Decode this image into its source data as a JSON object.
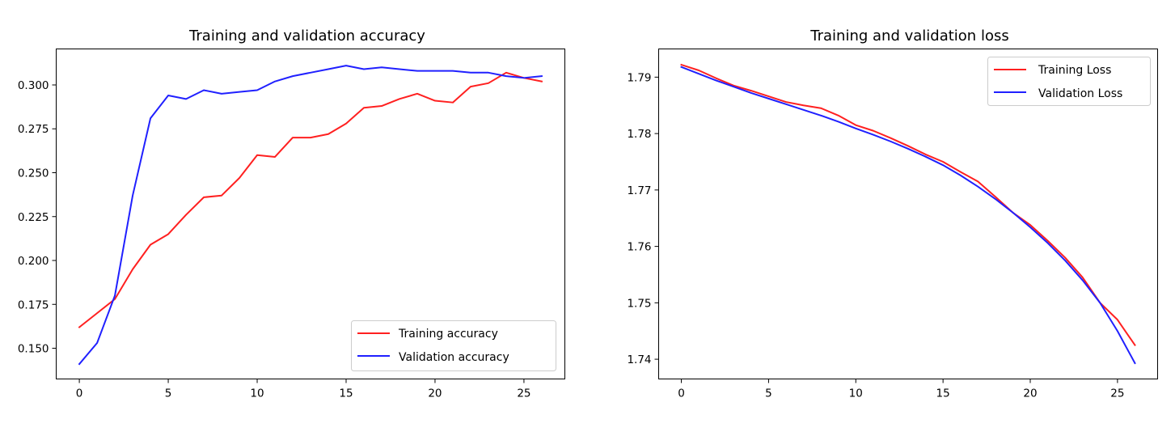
{
  "chart_data": [
    {
      "type": "line",
      "title": "Training and validation accuracy",
      "xlabel": "",
      "ylabel": "",
      "xlim": [
        -1.3,
        27.3
      ],
      "ylim": [
        0.1325,
        0.3205
      ],
      "xticks": [
        0,
        5,
        10,
        15,
        20,
        25
      ],
      "yticks": [
        0.15,
        0.175,
        0.2,
        0.225,
        0.25,
        0.275,
        0.3
      ],
      "ytick_labels": [
        "0.150",
        "0.175",
        "0.200",
        "0.225",
        "0.250",
        "0.275",
        "0.300"
      ],
      "legend_position": "lower-right",
      "grid": false,
      "x": [
        0,
        1,
        2,
        3,
        4,
        5,
        6,
        7,
        8,
        9,
        10,
        11,
        12,
        13,
        14,
        15,
        16,
        17,
        18,
        19,
        20,
        21,
        22,
        23,
        24,
        25,
        26
      ],
      "series": [
        {
          "name": "Training accuracy",
          "color": "#ff2020",
          "values": [
            0.162,
            0.17,
            0.178,
            0.195,
            0.209,
            0.215,
            0.226,
            0.236,
            0.237,
            0.247,
            0.26,
            0.259,
            0.27,
            0.27,
            0.272,
            0.278,
            0.287,
            0.288,
            0.292,
            0.295,
            0.291,
            0.29,
            0.299,
            0.301,
            0.307,
            0.304,
            0.302
          ]
        },
        {
          "name": "Validation accuracy",
          "color": "#2020ff",
          "values": [
            0.141,
            0.153,
            0.18,
            0.237,
            0.281,
            0.294,
            0.292,
            0.297,
            0.295,
            0.296,
            0.297,
            0.302,
            0.305,
            0.307,
            0.309,
            0.311,
            0.309,
            0.31,
            0.309,
            0.308,
            0.308,
            0.308,
            0.307,
            0.307,
            0.305,
            0.304,
            0.305
          ]
        }
      ]
    },
    {
      "type": "line",
      "title": "Training and validation loss",
      "xlabel": "",
      "ylabel": "",
      "xlim": [
        -1.3,
        27.3
      ],
      "ylim": [
        1.7365,
        1.795
      ],
      "xticks": [
        0,
        5,
        10,
        15,
        20,
        25
      ],
      "yticks": [
        1.74,
        1.75,
        1.76,
        1.77,
        1.78,
        1.79
      ],
      "ytick_labels": [
        "1.74",
        "1.75",
        "1.76",
        "1.77",
        "1.78",
        "1.79"
      ],
      "legend_position": "upper-right",
      "grid": false,
      "x": [
        0,
        1,
        2,
        3,
        4,
        5,
        6,
        7,
        8,
        9,
        10,
        11,
        12,
        13,
        14,
        15,
        16,
        17,
        18,
        19,
        20,
        21,
        22,
        23,
        24,
        25,
        26
      ],
      "series": [
        {
          "name": "Training Loss",
          "color": "#ff2020",
          "values": [
            1.7922,
            1.7912,
            1.7898,
            1.7885,
            1.7876,
            1.7866,
            1.7856,
            1.785,
            1.7845,
            1.7832,
            1.7815,
            1.7805,
            1.7792,
            1.7778,
            1.7763,
            1.775,
            1.7732,
            1.7715,
            1.7688,
            1.766,
            1.7638,
            1.761,
            1.758,
            1.7545,
            1.75,
            1.747,
            1.7425
          ]
        },
        {
          "name": "Validation Loss",
          "color": "#2020ff",
          "values": [
            1.7918,
            1.7906,
            1.7894,
            1.7883,
            1.7872,
            1.7862,
            1.7852,
            1.7842,
            1.7832,
            1.7821,
            1.7809,
            1.7798,
            1.7786,
            1.7773,
            1.7759,
            1.7744,
            1.7726,
            1.7706,
            1.7684,
            1.766,
            1.7634,
            1.7606,
            1.7575,
            1.754,
            1.75,
            1.745,
            1.7393
          ]
        }
      ]
    }
  ]
}
